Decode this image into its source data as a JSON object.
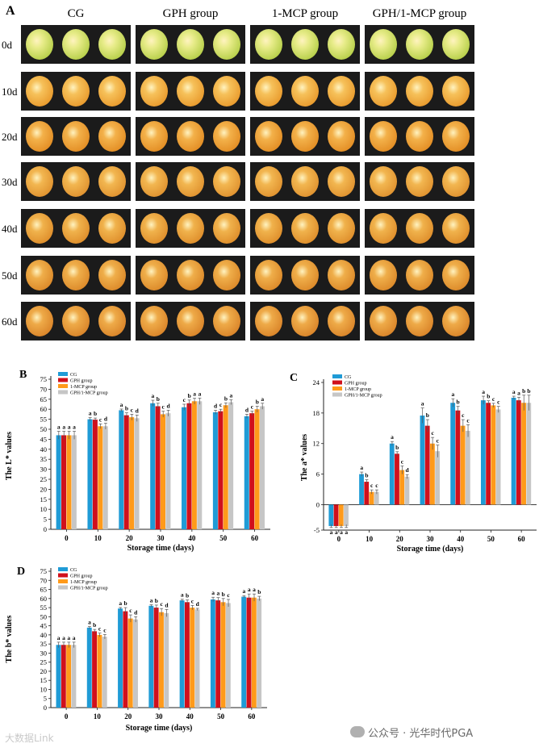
{
  "panel_a": {
    "label": "A",
    "columns": [
      "CG",
      "GPH group",
      "1-MCP group",
      "GPH/1-MCP group"
    ],
    "rows": [
      "0d",
      "10d",
      "20d",
      "30d",
      "40d",
      "50d",
      "60d"
    ]
  },
  "colors": {
    "CG": "#1f9bd6",
    "GPH": "#d0101c",
    "MCP": "#ff9a1a",
    "GPHMCP": "#c6c6c6"
  },
  "watermark": {
    "left": "大数据Link",
    "right": "公众号 · 光华时代PGA"
  },
  "chart_data": [
    {
      "panel": "B",
      "type": "bar",
      "ylabel": "The L* values",
      "xlabel": "Storage time (days)",
      "categories": [
        "0",
        "10",
        "20",
        "30",
        "40",
        "50",
        "60"
      ],
      "ylim": [
        0,
        75
      ],
      "yticks": [
        0,
        5,
        10,
        15,
        20,
        25,
        30,
        35,
        40,
        45,
        50,
        55,
        60,
        65,
        70,
        75
      ],
      "legend": "top-left",
      "series": [
        {
          "name": "CG",
          "color": "#1f9bd6",
          "values": [
            47,
            55,
            59.5,
            63,
            61,
            58.5,
            56.5
          ],
          "errors": [
            2,
            0.8,
            0.6,
            1.5,
            1.5,
            1,
            1
          ],
          "letters": [
            "a",
            "a",
            "a",
            "a",
            "c",
            "d",
            "d"
          ]
        },
        {
          "name": "GPH group",
          "color": "#d0101c",
          "values": [
            47,
            54.8,
            57,
            61.5,
            63,
            59,
            58
          ],
          "errors": [
            2,
            0.8,
            1.2,
            1.5,
            1.6,
            1,
            1
          ],
          "letters": [
            "a",
            "b",
            "b",
            "b",
            "b",
            "c",
            "c"
          ]
        },
        {
          "name": "1-MCP group",
          "color": "#ff9a1a",
          "values": [
            47,
            51.5,
            56,
            57.5,
            64,
            62,
            60
          ],
          "errors": [
            2,
            1.2,
            1.5,
            1.5,
            1.5,
            1.2,
            1.5
          ],
          "letters": [
            "a",
            "c",
            "c",
            "c",
            "a",
            "b",
            "b"
          ]
        },
        {
          "name": "GPH/1-MCP group",
          "color": "#c6c6c6",
          "values": [
            47,
            51.5,
            55.5,
            58,
            64,
            63.5,
            61.5
          ],
          "errors": [
            2,
            1.5,
            1.6,
            1.5,
            1.6,
            1.2,
            1.5
          ],
          "letters": [
            "a",
            "d",
            "d",
            "d",
            "a",
            "a",
            "a"
          ]
        }
      ]
    },
    {
      "panel": "C",
      "type": "bar",
      "ylabel": "The a* values",
      "xlabel": "Storage time (days)",
      "categories": [
        "0",
        "10",
        "20",
        "30",
        "40",
        "50",
        "60"
      ],
      "ylim": [
        -5,
        24
      ],
      "yticks": [
        -5,
        0,
        6,
        12,
        18,
        24
      ],
      "legend": "top-left",
      "series": [
        {
          "name": "CG",
          "color": "#1f9bd6",
          "values": [
            -4.2,
            6,
            12,
            17.5,
            20,
            20.5,
            21
          ],
          "errors": [
            0.3,
            0.4,
            0.4,
            1.5,
            0.8,
            0.8,
            0.3
          ],
          "letters": [
            "a",
            "a",
            "a",
            "a",
            "a",
            "a",
            "a"
          ]
        },
        {
          "name": "GPH group",
          "color": "#d0101c",
          "values": [
            -4.2,
            4.5,
            10,
            15.5,
            18.5,
            20,
            20.5
          ],
          "errors": [
            0.3,
            0.4,
            0.4,
            1.2,
            0.8,
            0.4,
            0.6
          ],
          "letters": [
            "a",
            "b",
            "b",
            "b",
            "b",
            "b",
            "a"
          ]
        },
        {
          "name": "1-MCP group",
          "color": "#ff9a1a",
          "values": [
            -4.2,
            2.5,
            6.8,
            12,
            15.5,
            19.5,
            20
          ],
          "errors": [
            0.3,
            0.4,
            0.8,
            1.2,
            1.2,
            0.4,
            1.5
          ],
          "letters": [
            "a",
            "c",
            "c",
            "c",
            "c",
            "c",
            "b"
          ]
        },
        {
          "name": "GPH/1-MCP group",
          "color": "#c6c6c6",
          "values": [
            -4.2,
            2.5,
            5.5,
            10.5,
            14.5,
            18.7,
            20
          ],
          "errors": [
            0.3,
            0.4,
            0.4,
            1.2,
            1.2,
            0.6,
            1.5
          ],
          "letters": [
            "a",
            "c",
            "d",
            "c",
            "c",
            "c",
            "b"
          ]
        }
      ]
    },
    {
      "panel": "D",
      "type": "bar",
      "ylabel": "The b* values",
      "xlabel": "Storage time (days)",
      "categories": [
        "0",
        "10",
        "20",
        "30",
        "40",
        "50",
        "60"
      ],
      "ylim": [
        0,
        75
      ],
      "yticks": [
        0,
        5,
        10,
        15,
        20,
        25,
        30,
        35,
        40,
        45,
        50,
        55,
        60,
        65,
        70,
        75
      ],
      "legend": "top-left",
      "series": [
        {
          "name": "CG",
          "color": "#1f9bd6",
          "values": [
            34.5,
            44,
            54.5,
            56,
            59,
            59.5,
            61
          ],
          "errors": [
            1.5,
            0.6,
            0.6,
            0.6,
            0.6,
            1.2,
            0.6
          ],
          "letters": [
            "a",
            "a",
            "a",
            "a",
            "a",
            "a",
            "a"
          ]
        },
        {
          "name": "GPH group",
          "color": "#d0101c",
          "values": [
            34.5,
            42,
            53,
            55,
            58,
            59,
            60.5
          ],
          "errors": [
            1.5,
            1,
            2,
            1.4,
            1.2,
            1.5,
            2
          ],
          "letters": [
            "a",
            "b",
            "b",
            "b",
            "b",
            "a",
            "a"
          ]
        },
        {
          "name": "1-MCP group",
          "color": "#ff9a1a",
          "values": [
            34.5,
            40,
            49,
            52.5,
            55,
            58,
            60.5
          ],
          "errors": [
            1.5,
            1,
            2,
            2,
            1.2,
            2,
            2
          ],
          "letters": [
            "a",
            "c",
            "c",
            "c",
            "c",
            "b",
            "a"
          ]
        },
        {
          "name": "GPH/1-MCP group",
          "color": "#c6c6c6",
          "values": [
            34.5,
            39,
            48.5,
            52,
            54,
            57.5,
            60
          ],
          "errors": [
            1.5,
            1.2,
            1.5,
            2,
            0.6,
            2,
            1.2
          ],
          "letters": [
            "a",
            "c",
            "d",
            "d",
            "d",
            "c",
            "b"
          ]
        }
      ]
    }
  ]
}
